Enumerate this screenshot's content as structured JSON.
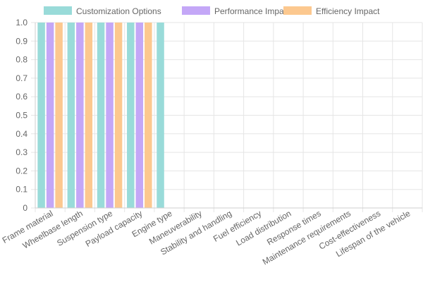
{
  "chart_data": {
    "type": "bar",
    "categories": [
      "Frame material",
      "Wheelbase length",
      "Suspension type",
      "Payload capacity",
      "Engine type",
      "Maneuverability",
      "Stability and handling",
      "Fuel efficiency",
      "Load distribution",
      "Response times",
      "Maintenance requirements",
      "Cost-effectiveness",
      "Lifespan of the vehicle"
    ],
    "series": [
      {
        "name": "Customization Options",
        "color": "#99dbd9",
        "values": [
          1,
          1,
          1,
          1,
          1,
          0,
          0,
          0,
          0,
          0,
          0,
          0,
          0
        ]
      },
      {
        "name": "Performance Impact",
        "color": "#c4a7f7",
        "values": [
          1,
          1,
          1,
          1,
          0,
          0,
          0,
          0,
          0,
          0,
          0,
          0,
          0
        ]
      },
      {
        "name": "Efficiency Impact",
        "color": "#fcc88f",
        "values": [
          1,
          1,
          1,
          1,
          0,
          0,
          0,
          0,
          0,
          0,
          0,
          0,
          0
        ]
      }
    ],
    "y_ticks": [
      "0",
      "0.1",
      "0.2",
      "0.3",
      "0.4",
      "0.5",
      "0.6",
      "0.7",
      "0.8",
      "0.9",
      "1.0"
    ],
    "ylim": [
      0,
      1
    ],
    "grid": true,
    "legend_position": "top-center"
  }
}
